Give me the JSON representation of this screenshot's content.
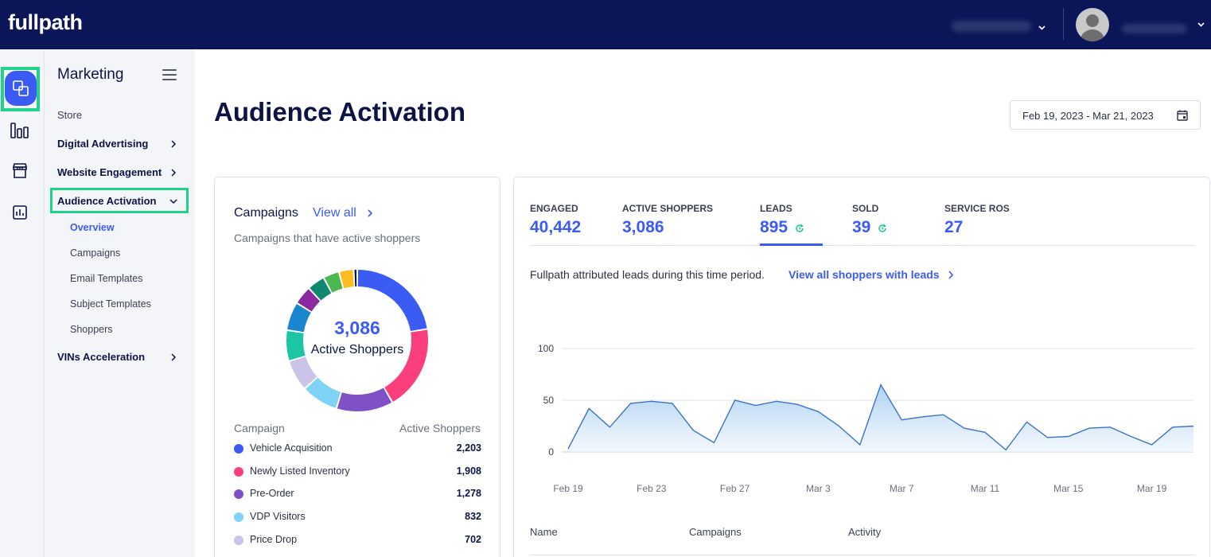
{
  "topbar": {
    "logo": "fullpath"
  },
  "rail": {
    "items": [
      {
        "icon": "audience-icon",
        "active": true
      },
      {
        "icon": "bar-chart-icon"
      },
      {
        "icon": "store-icon"
      },
      {
        "icon": "report-icon"
      }
    ]
  },
  "sidenav": {
    "title": "Marketing",
    "items": [
      {
        "label": "Store"
      },
      {
        "label": "Digital Advertising"
      },
      {
        "label": "Website Engagement"
      },
      {
        "label": "Audience Activation"
      },
      {
        "label": "VINs Acceleration"
      }
    ],
    "subitems": [
      "Overview",
      "Campaigns",
      "Email Templates",
      "Subject Templates",
      "Shoppers"
    ]
  },
  "main": {
    "title": "Audience Activation",
    "date_range": "Feb 19, 2023 - Mar 21, 2023"
  },
  "campaigns": {
    "title": "Campaigns",
    "view_all": "View all",
    "subtitle": "Campaigns that have active shoppers",
    "total": "3,086",
    "total_label": "Active Shoppers",
    "legend_col_left": "Campaign",
    "legend_col_right": "Active Shoppers",
    "legend": [
      {
        "name": "Vehicle Acquisition",
        "value": "2,203",
        "color": "#3b5bf5"
      },
      {
        "name": "Newly Listed Inventory",
        "value": "1,908",
        "color": "#fb3f7c"
      },
      {
        "name": "Pre-Order",
        "value": "1,278",
        "color": "#7e52c6"
      },
      {
        "name": "VDP Visitors",
        "value": "832",
        "color": "#7fd3f7"
      },
      {
        "name": "Price Drop",
        "value": "702",
        "color": "#cbc3e8"
      }
    ],
    "donut_segments": [
      {
        "value": 2203,
        "color": "#3b5bf5"
      },
      {
        "value": 1908,
        "color": "#fb3f7c"
      },
      {
        "value": 1278,
        "color": "#7e52c6"
      },
      {
        "value": 832,
        "color": "#7fd3f7"
      },
      {
        "value": 702,
        "color": "#cbc3e8"
      },
      {
        "value": 690,
        "color": "#1cc5a3"
      },
      {
        "value": 640,
        "color": "#1a86cf"
      },
      {
        "value": 420,
        "color": "#8a2a9e"
      },
      {
        "value": 400,
        "color": "#12876f"
      },
      {
        "value": 360,
        "color": "#4cb852"
      },
      {
        "value": 330,
        "color": "#fdbd22"
      },
      {
        "value": 80,
        "color": "#0c1446"
      }
    ]
  },
  "metrics": {
    "tabs": [
      {
        "label": "ENGAGED",
        "value": "40,442"
      },
      {
        "label": "ACTIVE SHOPPERS",
        "value": "3,086"
      },
      {
        "label": "LEADS",
        "value": "895",
        "refresh": true,
        "active": true
      },
      {
        "label": "SOLD",
        "value": "39",
        "refresh": true
      },
      {
        "label": "SERVICE ROS",
        "value": "27"
      }
    ],
    "attrib_text": "Fullpath attributed leads during this time period.",
    "attrib_link": "View all shoppers with leads",
    "table_headers": [
      "Name",
      "Campaigns",
      "Activity"
    ]
  },
  "chart_data": {
    "type": "area",
    "title": "",
    "xlabel": "",
    "ylabel": "",
    "x_ticks": [
      "Feb 19",
      "Feb 23",
      "Feb 27",
      "Mar 3",
      "Mar 7",
      "Mar 11",
      "Mar 15",
      "Mar 19"
    ],
    "y_ticks": [
      0,
      50,
      100
    ],
    "ylim": [
      0,
      100
    ],
    "grid": true,
    "x": [
      "Feb 19",
      "Feb 20",
      "Feb 21",
      "Feb 22",
      "Feb 23",
      "Feb 24",
      "Feb 25",
      "Feb 26",
      "Feb 27",
      "Feb 28",
      "Mar 1",
      "Mar 2",
      "Mar 3",
      "Mar 4",
      "Mar 5",
      "Mar 6",
      "Mar 7",
      "Mar 8",
      "Mar 9",
      "Mar 10",
      "Mar 11",
      "Mar 12",
      "Mar 13",
      "Mar 14",
      "Mar 15",
      "Mar 16",
      "Mar 17",
      "Mar 18",
      "Mar 19",
      "Mar 20",
      "Mar 21"
    ],
    "values": [
      3,
      42,
      24,
      47,
      49,
      47,
      21,
      9,
      50,
      45,
      49,
      46,
      39,
      25,
      7,
      65,
      31,
      34,
      36,
      23,
      19,
      2,
      29,
      14,
      15,
      23,
      24,
      15,
      7,
      24,
      25
    ],
    "color": "#3b73c9"
  }
}
